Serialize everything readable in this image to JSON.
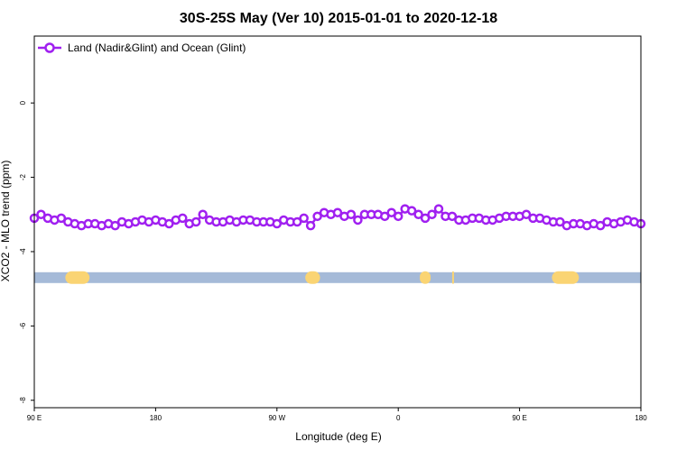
{
  "chart_data": {
    "type": "line",
    "title": "30S-25S May (Ver 10)   2015-01-01 to 2020-12-18",
    "xlabel": "Longitude (deg E)",
    "ylabel": "XCO2 - MLO trend (ppm)",
    "xlim": [
      90,
      540
    ],
    "ylim": [
      -8.2,
      1.8
    ],
    "x_ticks": [
      {
        "value": 90,
        "label": "90 E"
      },
      {
        "value": 180,
        "label": "180"
      },
      {
        "value": 270,
        "label": "90 W"
      },
      {
        "value": 360,
        "label": "0"
      },
      {
        "value": 450,
        "label": "90 E"
      },
      {
        "value": 540,
        "label": "180"
      }
    ],
    "y_ticks": [
      {
        "value": 0,
        "label": "0"
      },
      {
        "value": -2,
        "label": "-2"
      },
      {
        "value": -4,
        "label": "-4"
      },
      {
        "value": -6,
        "label": "-6"
      },
      {
        "value": -8,
        "label": "-8"
      }
    ],
    "legend": {
      "position": "top-left"
    },
    "series": [
      {
        "name": "Land (Nadir&Glint) and Ocean (Glint)",
        "color": "#a020f0",
        "marker": "open-circle",
        "x": [
          90,
          95,
          100,
          105,
          110,
          115,
          120,
          125,
          130,
          135,
          140,
          145,
          150,
          155,
          160,
          165,
          170,
          175,
          180,
          185,
          190,
          195,
          200,
          205,
          210,
          215,
          220,
          225,
          230,
          235,
          240,
          245,
          250,
          255,
          260,
          265,
          270,
          275,
          280,
          285,
          290,
          295,
          300,
          305,
          310,
          315,
          320,
          325,
          330,
          335,
          340,
          345,
          350,
          355,
          360,
          365,
          370,
          375,
          380,
          385,
          390,
          395,
          400,
          405,
          410,
          415,
          420,
          425,
          430,
          435,
          440,
          445,
          450,
          455,
          460,
          465,
          470,
          475,
          480,
          485,
          490,
          495,
          500,
          505,
          510,
          515,
          520,
          525,
          530,
          535,
          540
        ],
        "y": [
          -3.1,
          -3.0,
          -3.1,
          -3.15,
          -3.1,
          -3.2,
          -3.25,
          -3.3,
          -3.25,
          -3.25,
          -3.3,
          -3.25,
          -3.3,
          -3.2,
          -3.25,
          -3.2,
          -3.15,
          -3.2,
          -3.15,
          -3.2,
          -3.25,
          -3.15,
          -3.1,
          -3.25,
          -3.2,
          -3.0,
          -3.15,
          -3.2,
          -3.2,
          -3.15,
          -3.2,
          -3.15,
          -3.15,
          -3.2,
          -3.2,
          -3.2,
          -3.25,
          -3.15,
          -3.2,
          -3.2,
          -3.1,
          -3.3,
          -3.05,
          -2.95,
          -3.0,
          -2.95,
          -3.05,
          -3.0,
          -3.15,
          -3.0,
          -3.0,
          -3.0,
          -3.05,
          -2.95,
          -3.05,
          -2.85,
          -2.9,
          -3.0,
          -3.1,
          -3.0,
          -2.85,
          -3.05,
          -3.05,
          -3.15,
          -3.15,
          -3.1,
          -3.1,
          -3.15,
          -3.15,
          -3.1,
          -3.05,
          -3.05,
          -3.05,
          -3.0,
          -3.1,
          -3.1,
          -3.15,
          -3.2,
          -3.2,
          -3.3,
          -3.25,
          -3.25,
          -3.3,
          -3.25,
          -3.3,
          -3.2,
          -3.25,
          -3.2,
          -3.15,
          -3.2,
          -3.25
        ]
      }
    ],
    "surface_bar": {
      "y": -4.7,
      "ocean_color": "#a5bad8",
      "land_color": "#fad473",
      "land_segments": [
        [
          113,
          131
        ],
        [
          291,
          302
        ],
        [
          376,
          384
        ],
        [
          400,
          401
        ],
        [
          474,
          494
        ]
      ]
    }
  }
}
